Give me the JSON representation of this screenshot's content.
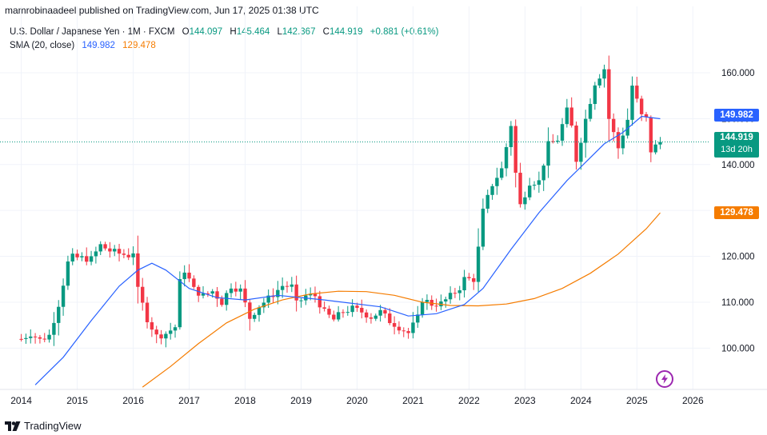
{
  "header": {
    "published": "mamrobinaadeel published on TradingView.com, Jun 17, 2025 01:38 UTC"
  },
  "legend": {
    "symbol": "U.S. Dollar / Japanese Yen · 1M · FXCM",
    "o_label": "O",
    "o_value": "144.097",
    "h_label": "H",
    "h_value": "145.464",
    "l_label": "L",
    "l_value": "142.367",
    "c_label": "C",
    "c_value": "144.919",
    "change": "+0.881 (+0.61%)",
    "sma_label": "SMA (20, close)",
    "sma_value_1": "149.982",
    "sma_value_2": "129.478"
  },
  "price_tags": {
    "sma_fast": "149.982",
    "close": "144.919",
    "countdown": "13d 20h",
    "sma_slow": "129.478"
  },
  "brand": {
    "name": "TradingView"
  },
  "icons": {
    "flash": "lightning-icon",
    "logo": "tradingview-logo-icon"
  },
  "colors": {
    "up": "#089981",
    "down": "#f23645",
    "sma_fast": "#2962ff",
    "sma_slow": "#f57c00",
    "grid": "#f0f3fa"
  },
  "chart_data": {
    "type": "candlestick",
    "title": "U.S. Dollar / Japanese Yen · 1M · FXCM",
    "x_ticks": [
      "2014",
      "2015",
      "2016",
      "2017",
      "2018",
      "2019",
      "2020",
      "2021",
      "2022",
      "2023",
      "2024",
      "2025",
      "2026"
    ],
    "y_ticks": [
      "100.000",
      "110.000",
      "120.000",
      "130.000",
      "140.000",
      "150.000",
      "160.000"
    ],
    "ylim": [
      91,
      164
    ],
    "grid": true,
    "last_close": 144.919,
    "close_path": [
      {
        "date": "2014-01",
        "close": 102.0
      },
      {
        "date": "2014-03",
        "close": 103.2
      },
      {
        "date": "2014-05",
        "close": 101.8
      },
      {
        "date": "2014-07",
        "close": 102.8
      },
      {
        "date": "2014-09",
        "close": 109.6
      },
      {
        "date": "2014-11",
        "close": 118.6
      },
      {
        "date": "2014-12",
        "close": 119.8
      },
      {
        "date": "2015-02",
        "close": 119.6
      },
      {
        "date": "2015-04",
        "close": 119.4
      },
      {
        "date": "2015-06",
        "close": 122.4
      },
      {
        "date": "2015-08",
        "close": 121.2
      },
      {
        "date": "2015-10",
        "close": 120.6
      },
      {
        "date": "2015-12",
        "close": 120.2
      },
      {
        "date": "2016-01",
        "close": 121.0
      },
      {
        "date": "2016-02",
        "close": 112.6
      },
      {
        "date": "2016-04",
        "close": 106.4
      },
      {
        "date": "2016-06",
        "close": 102.6
      },
      {
        "date": "2016-08",
        "close": 103.2
      },
      {
        "date": "2016-10",
        "close": 104.6
      },
      {
        "date": "2016-11",
        "close": 114.4
      },
      {
        "date": "2016-12",
        "close": 117.0
      },
      {
        "date": "2017-02",
        "close": 112.8
      },
      {
        "date": "2017-04",
        "close": 111.4
      },
      {
        "date": "2017-06",
        "close": 112.4
      },
      {
        "date": "2017-08",
        "close": 110.0
      },
      {
        "date": "2017-10",
        "close": 113.6
      },
      {
        "date": "2017-12",
        "close": 112.6
      },
      {
        "date": "2018-02",
        "close": 106.6
      },
      {
        "date": "2018-04",
        "close": 109.2
      },
      {
        "date": "2018-06",
        "close": 110.8
      },
      {
        "date": "2018-09",
        "close": 113.6
      },
      {
        "date": "2018-11",
        "close": 113.4
      },
      {
        "date": "2018-12",
        "close": 109.6
      },
      {
        "date": "2019-02",
        "close": 111.4
      },
      {
        "date": "2019-04",
        "close": 111.4
      },
      {
        "date": "2019-06",
        "close": 107.8
      },
      {
        "date": "2019-08",
        "close": 106.2
      },
      {
        "date": "2019-10",
        "close": 108.0
      },
      {
        "date": "2019-12",
        "close": 108.6
      },
      {
        "date": "2020-02",
        "close": 107.9
      },
      {
        "date": "2020-04",
        "close": 106.8
      },
      {
        "date": "2020-06",
        "close": 107.9
      },
      {
        "date": "2020-08",
        "close": 105.9
      },
      {
        "date": "2020-10",
        "close": 104.6
      },
      {
        "date": "2020-12",
        "close": 103.3
      },
      {
        "date": "2021-02",
        "close": 106.6
      },
      {
        "date": "2021-03",
        "close": 110.7
      },
      {
        "date": "2021-05",
        "close": 109.6
      },
      {
        "date": "2021-07",
        "close": 109.7
      },
      {
        "date": "2021-09",
        "close": 111.3
      },
      {
        "date": "2021-11",
        "close": 113.2
      },
      {
        "date": "2021-12",
        "close": 115.1
      },
      {
        "date": "2022-02",
        "close": 115.0
      },
      {
        "date": "2022-03",
        "close": 121.7
      },
      {
        "date": "2022-04",
        "close": 129.8
      },
      {
        "date": "2022-06",
        "close": 135.7
      },
      {
        "date": "2022-08",
        "close": 139.0
      },
      {
        "date": "2022-10",
        "close": 148.7
      },
      {
        "date": "2022-11",
        "close": 138.1
      },
      {
        "date": "2022-12",
        "close": 131.1
      },
      {
        "date": "2023-02",
        "close": 136.2
      },
      {
        "date": "2023-04",
        "close": 136.3
      },
      {
        "date": "2023-06",
        "close": 144.3
      },
      {
        "date": "2023-08",
        "close": 145.5
      },
      {
        "date": "2023-10",
        "close": 151.7
      },
      {
        "date": "2023-11",
        "close": 148.2
      },
      {
        "date": "2023-12",
        "close": 141.0
      },
      {
        "date": "2024-02",
        "close": 149.9
      },
      {
        "date": "2024-04",
        "close": 157.8
      },
      {
        "date": "2024-06",
        "close": 160.9
      },
      {
        "date": "2024-07",
        "close": 150.0
      },
      {
        "date": "2024-09",
        "close": 143.6
      },
      {
        "date": "2024-11",
        "close": 149.8
      },
      {
        "date": "2024-12",
        "close": 157.2
      },
      {
        "date": "2025-02",
        "close": 150.6
      },
      {
        "date": "2025-03",
        "close": 149.9
      },
      {
        "date": "2025-04",
        "close": 143.0
      },
      {
        "date": "2025-05",
        "close": 144.0
      },
      {
        "date": "2025-06",
        "close": 144.919
      }
    ],
    "series": [
      {
        "name": "SMA (20, close)",
        "color": "#2962ff",
        "last_value": 149.982
      },
      {
        "name": "SMA (20, close)",
        "color": "#f57c00",
        "last_value": 129.478
      }
    ],
    "sma_blue": [
      {
        "date": "2014-04",
        "value": 92.0
      },
      {
        "date": "2014-10",
        "value": 98.0
      },
      {
        "date": "2015-04",
        "value": 106.0
      },
      {
        "date": "2015-10",
        "value": 113.5
      },
      {
        "date": "2016-02",
        "value": 117.0
      },
      {
        "date": "2016-05",
        "value": 118.5
      },
      {
        "date": "2016-08",
        "value": 117.0
      },
      {
        "date": "2017-01",
        "value": 113.0
      },
      {
        "date": "2017-07",
        "value": 111.0
      },
      {
        "date": "2018-01",
        "value": 110.5
      },
      {
        "date": "2018-08",
        "value": 111.5
      },
      {
        "date": "2019-06",
        "value": 110.5
      },
      {
        "date": "2020-06",
        "value": 109.0
      },
      {
        "date": "2020-12",
        "value": 107.0
      },
      {
        "date": "2021-06",
        "value": 107.5
      },
      {
        "date": "2021-12",
        "value": 109.5
      },
      {
        "date": "2022-04",
        "value": 113.0
      },
      {
        "date": "2022-10",
        "value": 121.5
      },
      {
        "date": "2023-04",
        "value": 129.5
      },
      {
        "date": "2023-10",
        "value": 136.5
      },
      {
        "date": "2024-02",
        "value": 140.5
      },
      {
        "date": "2024-06",
        "value": 144.5
      },
      {
        "date": "2024-10",
        "value": 147.0
      },
      {
        "date": "2025-02",
        "value": 150.5
      },
      {
        "date": "2025-06",
        "value": 149.982
      }
    ],
    "sma_orange": [
      {
        "date": "2016-03",
        "value": 91.5
      },
      {
        "date": "2016-09",
        "value": 96.0
      },
      {
        "date": "2017-03",
        "value": 101.0
      },
      {
        "date": "2017-09",
        "value": 105.5
      },
      {
        "date": "2018-03",
        "value": 108.5
      },
      {
        "date": "2018-09",
        "value": 110.5
      },
      {
        "date": "2019-03",
        "value": 111.8
      },
      {
        "date": "2019-09",
        "value": 112.4
      },
      {
        "date": "2020-03",
        "value": 112.3
      },
      {
        "date": "2020-09",
        "value": 111.5
      },
      {
        "date": "2021-03",
        "value": 110.0
      },
      {
        "date": "2021-09",
        "value": 109.3
      },
      {
        "date": "2022-03",
        "value": 109.2
      },
      {
        "date": "2022-09",
        "value": 109.6
      },
      {
        "date": "2023-03",
        "value": 110.8
      },
      {
        "date": "2023-09",
        "value": 113.0
      },
      {
        "date": "2024-03",
        "value": 116.3
      },
      {
        "date": "2024-09",
        "value": 120.5
      },
      {
        "date": "2025-03",
        "value": 126.0
      },
      {
        "date": "2025-06",
        "value": 129.478
      }
    ]
  }
}
